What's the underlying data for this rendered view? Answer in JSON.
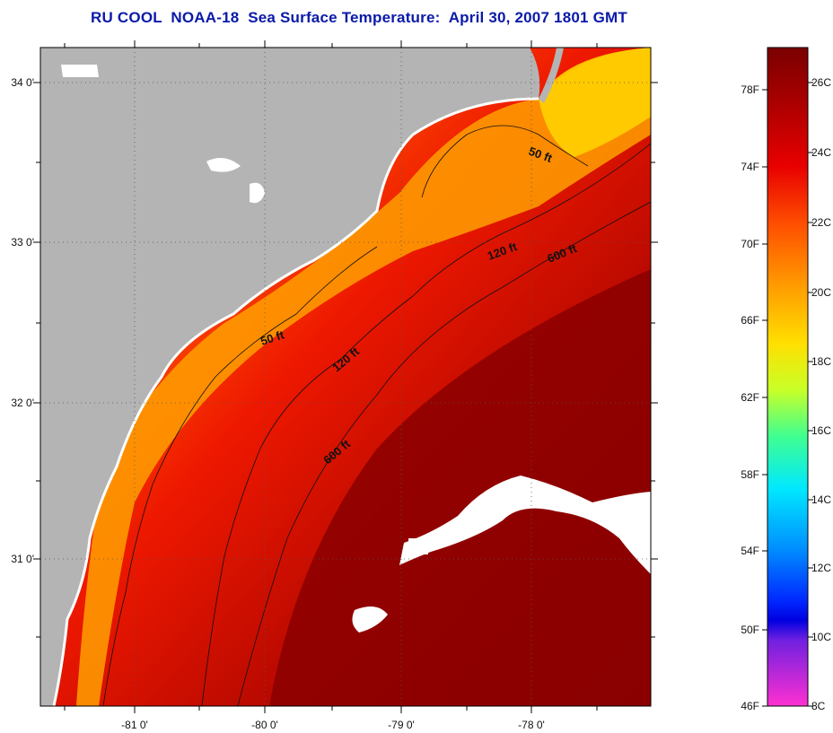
{
  "title": "RU COOL  NOAA-18  Sea Surface Temperature:  April 30, 2007 1801 GMT",
  "map": {
    "lat_ticks": [
      "34 0'",
      "33 0'",
      "32 0'",
      "31 0'"
    ],
    "lon_ticks": [
      "-81 0'",
      "-80 0'",
      "-79 0'",
      "-78 0'"
    ],
    "contour_labels": [
      "50 ft",
      "120 ft",
      "600 ft",
      "50 ft",
      "120 ft",
      "600 ft"
    ],
    "land_color": "#b4b4b4",
    "cloud_color": "#ffffff"
  },
  "colorbar": {
    "fahrenheit_ticks": [
      "78F",
      "74F",
      "70F",
      "66F",
      "62F",
      "58F",
      "54F",
      "50F",
      "46F"
    ],
    "celsius_ticks": [
      "26C",
      "24C",
      "22C",
      "20C",
      "18C",
      "16C",
      "14C",
      "12C",
      "10C",
      "8C"
    ]
  }
}
